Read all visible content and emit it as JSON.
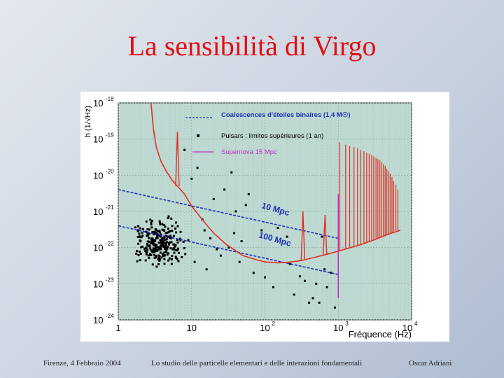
{
  "slide": {
    "title": "La sensibilità di Virgo",
    "footer_left": "Firenze, 4 Febbraio 2004",
    "footer_center": "Lo studio delle particelle elementari e delle interazioni fondamentali",
    "footer_right": "Oscar Adriani"
  },
  "colors": {
    "title": "#e01010",
    "plot_background": "#bed8d2",
    "sensitivity_curve": "#e03020",
    "coalescence_lines": "#1a2fb8",
    "supernova_line": "#c030c0",
    "pulsar_points": "#000000"
  },
  "chart_data": {
    "type": "line",
    "xlabel": "Fréquence (Hz)",
    "ylabel": "h (1/√Hz)",
    "xscale": "log",
    "yscale": "log",
    "xlim": [
      1,
      10000
    ],
    "ylim": [
      1e-24,
      1e-18
    ],
    "grid": true,
    "legend_position": "top-center",
    "x_ticks": [
      {
        "base": "1",
        "exp": ""
      },
      {
        "base": "10",
        "exp": ""
      },
      {
        "base": "10",
        "exp": "2"
      },
      {
        "base": "10",
        "exp": "3"
      },
      {
        "base": "10",
        "exp": "4"
      }
    ],
    "y_ticks": [
      {
        "base": "10",
        "exp": "-18"
      },
      {
        "base": "10",
        "exp": "-19"
      },
      {
        "base": "10",
        "exp": "-20"
      },
      {
        "base": "10",
        "exp": "-21"
      },
      {
        "base": "10",
        "exp": "-22"
      },
      {
        "base": "10",
        "exp": "-23"
      },
      {
        "base": "10",
        "exp": "-24"
      }
    ],
    "legend": [
      {
        "label": "Coalescences d'étoiles binaires (1,4 M☉)",
        "style": "dashed",
        "color": "#1a2fb8"
      },
      {
        "label": "Pulsars : limites supérieures (1 an)",
        "style": "marker",
        "color": "#000000"
      },
      {
        "label": "Supernova 15 Mpc",
        "style": "solid",
        "color": "#c030c0"
      }
    ],
    "annotations": [
      "10 Mpc",
      "100 Mpc"
    ],
    "series": [
      {
        "kind": "sensitivity",
        "x": [
          2.8,
          3.0,
          3.3,
          3.8,
          4.5,
          5.5,
          6.4,
          8,
          10,
          15,
          20,
          30,
          50,
          80,
          100,
          150,
          200,
          300,
          500,
          800,
          1000,
          2000,
          3000,
          5000,
          7000
        ],
        "y": [
          1e-18,
          2e-19,
          6e-20,
          2.5e-20,
          1.3e-20,
          7e-21,
          5e-21,
          3e-21,
          1.4e-21,
          5e-22,
          2.5e-22,
          1.2e-22,
          6e-23,
          4.5e-23,
          4e-23,
          3.8e-23,
          3.9e-23,
          4.3e-23,
          5.5e-23,
          7e-23,
          8e-23,
          1.2e-22,
          1.6e-22,
          2.4e-22,
          3e-22
        ],
        "resonances": [
          {
            "x": 6.4,
            "peak": 1.6e-19
          },
          {
            "x": 330,
            "peak": 1e-21
          },
          {
            "x": 660,
            "peak": 8e-22
          }
        ],
        "violin_peaks_x": [
          1050,
          1260,
          1430,
          1640,
          1830,
          2030,
          2240,
          2440,
          2640,
          2850,
          3050,
          3270,
          3470,
          3690,
          3910,
          4130,
          4360,
          4600,
          4850,
          5100,
          5400,
          5700,
          6100,
          6500
        ],
        "violin_peaks_y": [
          8e-20,
          7e-20,
          6.5e-20,
          6e-20,
          5.5e-20,
          5e-20,
          4.6e-20,
          4.2e-20,
          3.9e-20,
          3.6e-20,
          3.3e-20,
          3e-20,
          2.8e-20,
          2.6e-20,
          2.3e-20,
          2e-20,
          1.8e-20,
          1.5e-20,
          1.3e-20,
          1.1e-20,
          9e-21,
          7e-21,
          5.5e-21,
          4e-21
        ]
      },
      {
        "kind": "coalescence",
        "label": "10 Mpc",
        "x": [
          1,
          1000
        ],
        "y": [
          4e-21,
          1.8e-22
        ]
      },
      {
        "kind": "coalescence",
        "label": "100 Mpc",
        "x": [
          1,
          1000
        ],
        "y": [
          4e-22,
          1.8e-23
        ]
      },
      {
        "kind": "supernova",
        "x": [
          1000,
          1000
        ],
        "y": [
          3e-21,
          4e-24
        ]
      }
    ],
    "pulsar_cluster": {
      "x_range": [
        1,
        10
      ],
      "y_range": [
        2e-23,
        1e-21
      ],
      "count": 260
    },
    "pulsar_scatter": [
      [
        8,
        5e-20
      ],
      [
        12,
        1.6e-20
      ],
      [
        20,
        2.2e-21
      ],
      [
        28,
        4e-21
      ],
      [
        35,
        1.2e-20
      ],
      [
        40,
        1e-21
      ],
      [
        55,
        1.5e-21
      ],
      [
        60,
        3e-21
      ],
      [
        90,
        3e-22
      ],
      [
        150,
        3.5e-22
      ],
      [
        200,
        2e-22
      ],
      [
        220,
        3.5e-23
      ],
      [
        300,
        1.6e-23
      ],
      [
        400,
        3e-24
      ],
      [
        450,
        4e-24
      ],
      [
        500,
        1e-23
      ],
      [
        600,
        2e-22
      ],
      [
        650,
        2.5e-23
      ],
      [
        700,
        8e-24
      ],
      [
        800,
        2e-23
      ],
      [
        900,
        2.2e-24
      ],
      [
        25,
        6e-23
      ],
      [
        45,
        4e-23
      ],
      [
        70,
        2e-23
      ],
      [
        100,
        1.5e-23
      ],
      [
        130,
        8e-24
      ],
      [
        250,
        5e-24
      ],
      [
        350,
        1.2e-23
      ],
      [
        550,
        3e-24
      ],
      [
        15,
        3e-22
      ],
      [
        18,
        1.8e-22
      ],
      [
        22,
        9e-23
      ],
      [
        32,
        1e-22
      ],
      [
        38,
        2.5e-22
      ],
      [
        48,
        1.5e-22
      ],
      [
        10,
        8e-21
      ],
      [
        14,
        6e-22
      ],
      [
        9,
        1.6e-22
      ],
      [
        11,
        4e-23
      ],
      [
        16,
        2.5e-23
      ]
    ]
  }
}
